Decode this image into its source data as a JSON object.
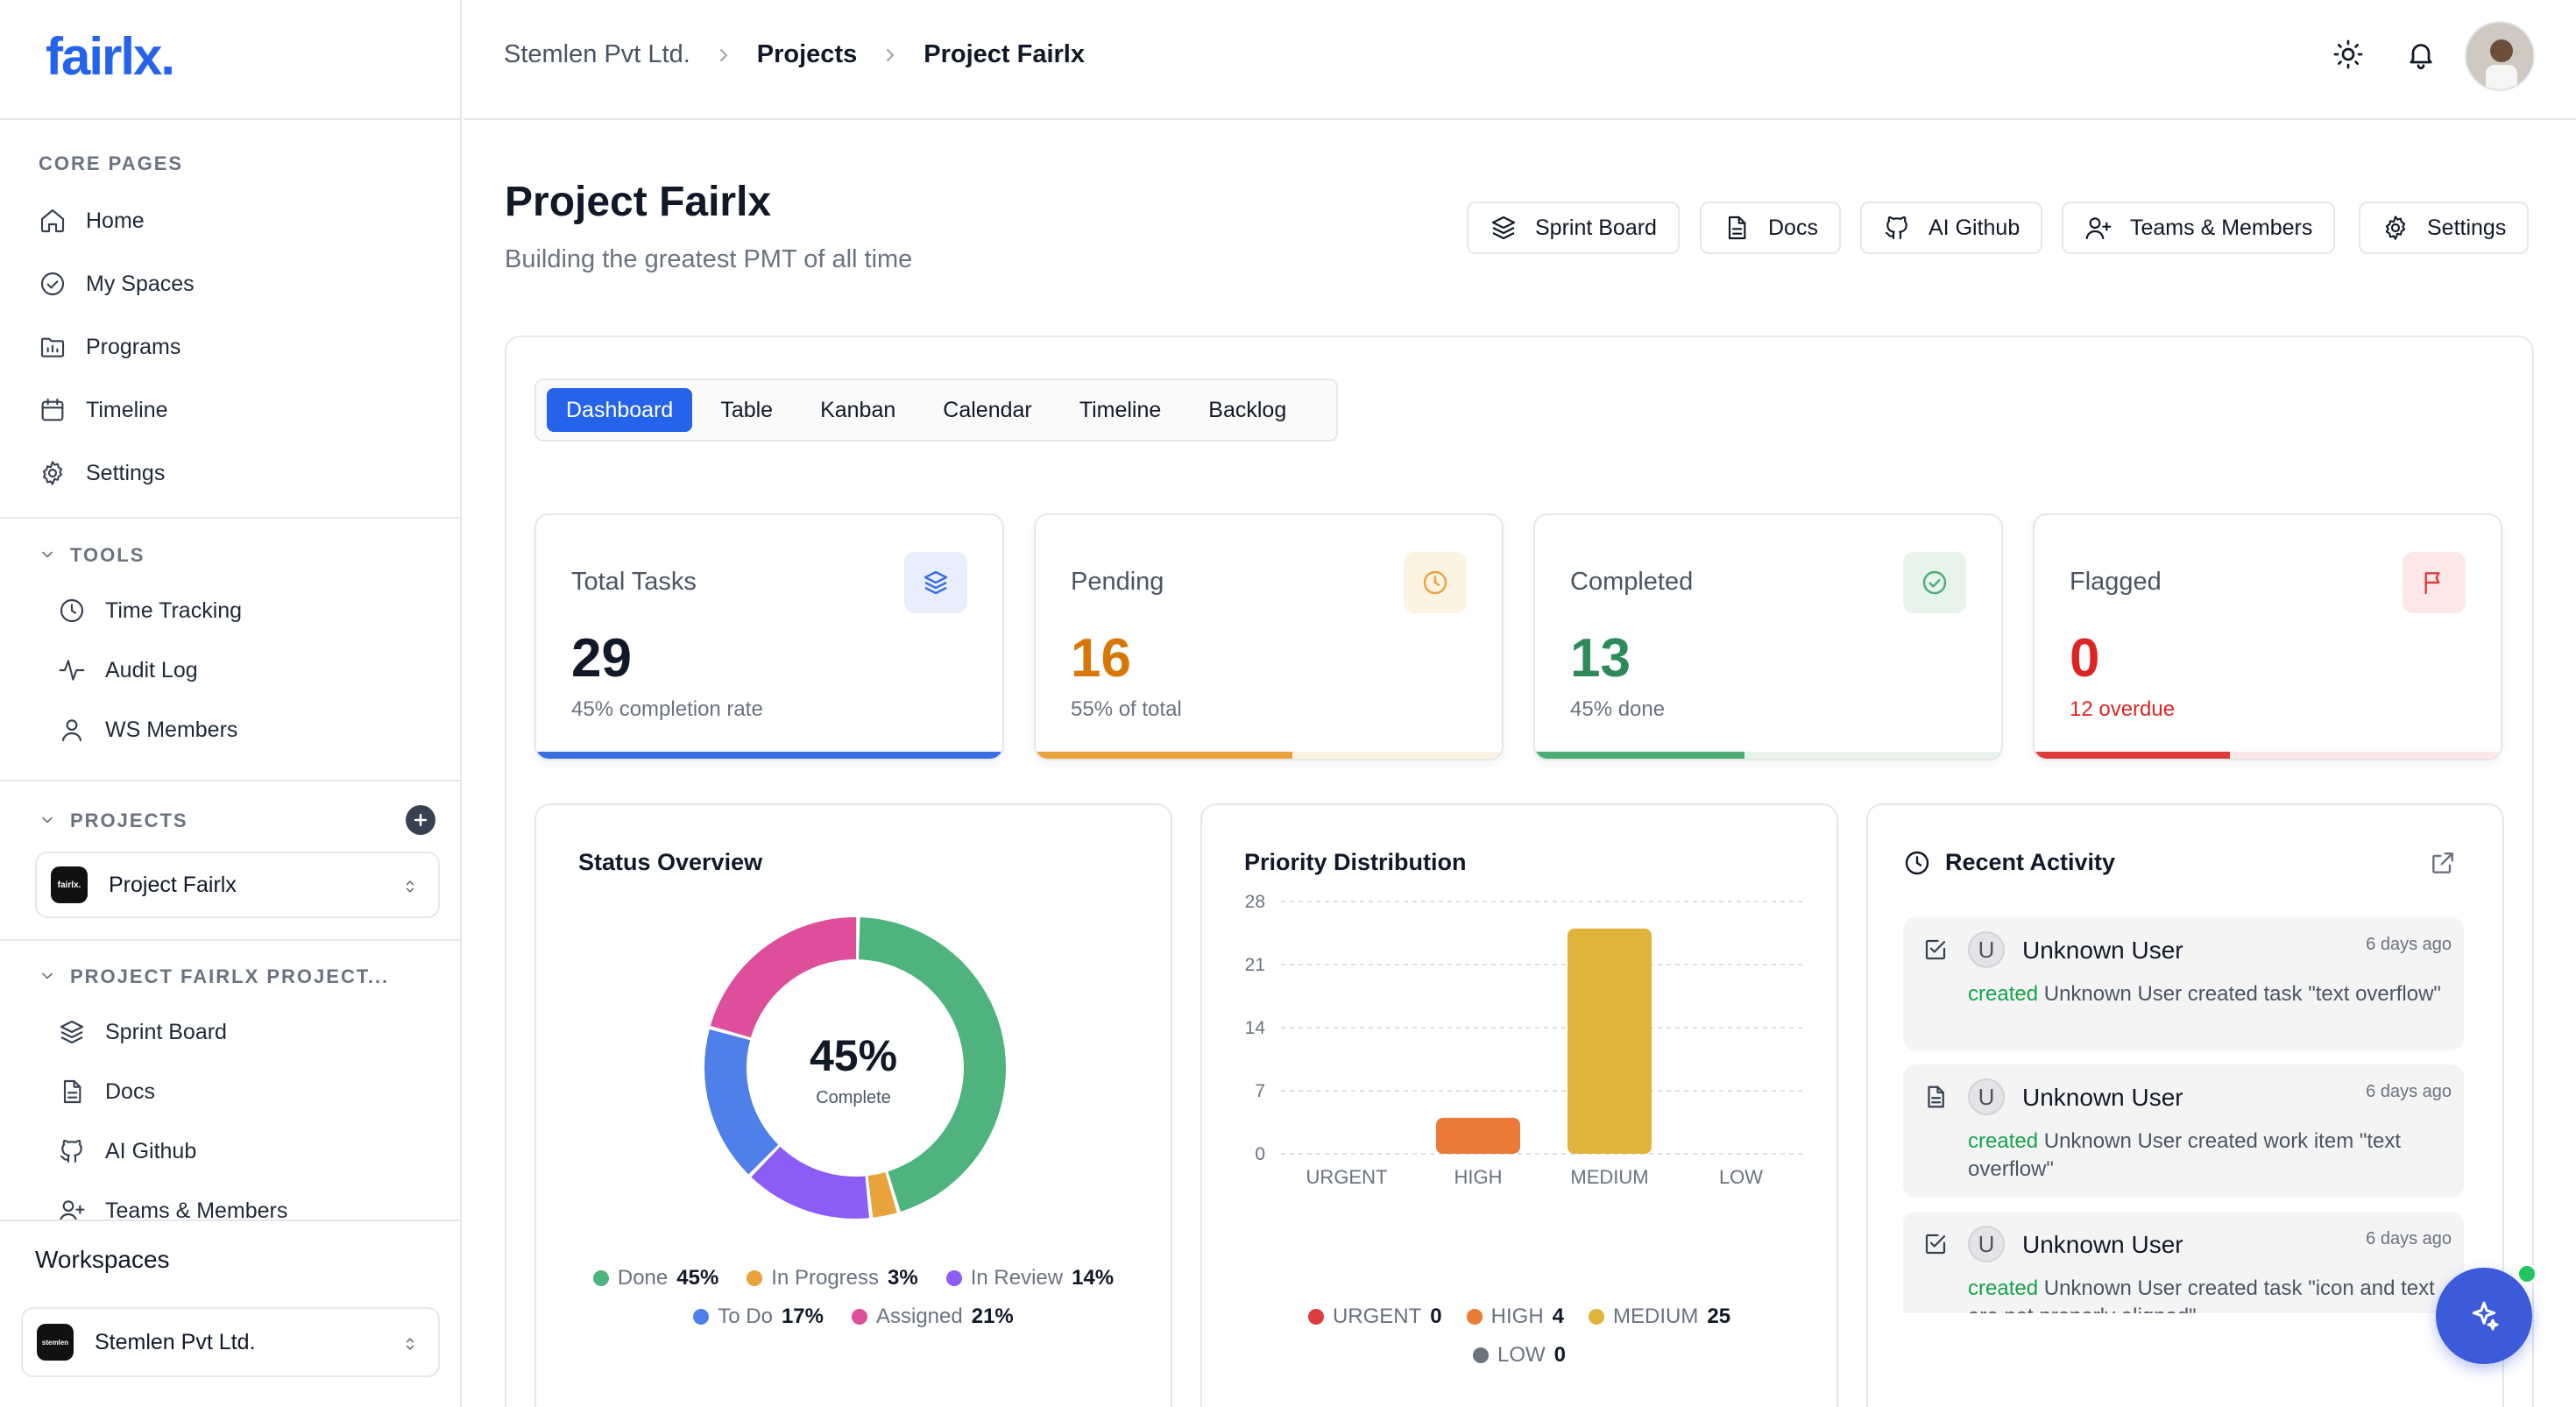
{
  "brand": {
    "logo": "fairlx."
  },
  "sidebar": {
    "core_title": "CORE PAGES",
    "core_items": [
      {
        "label": "Home",
        "icon": "home-icon"
      },
      {
        "label": "My Spaces",
        "icon": "check-circle-icon"
      },
      {
        "label": "Programs",
        "icon": "folder-chart-icon"
      },
      {
        "label": "Timeline",
        "icon": "calendar-icon"
      },
      {
        "label": "Settings",
        "icon": "gear-icon"
      }
    ],
    "tools_title": "TOOLS",
    "tools_items": [
      {
        "label": "Time Tracking",
        "icon": "clock-icon"
      },
      {
        "label": "Audit Log",
        "icon": "activity-icon"
      },
      {
        "label": "WS Members",
        "icon": "user-icon"
      }
    ],
    "projects_title": "PROJECTS",
    "project_select": {
      "name": "Project Fairlx",
      "logo": "fairlx."
    },
    "project_pages_title": "PROJECT FAIRLX PROJECT...",
    "project_items": [
      {
        "label": "Sprint Board",
        "icon": "layers-icon"
      },
      {
        "label": "Docs",
        "icon": "document-icon"
      },
      {
        "label": "AI Github",
        "icon": "github-icon"
      },
      {
        "label": "Teams & Members",
        "icon": "user-plus-icon"
      }
    ],
    "workspace_label": "Workspaces",
    "workspace_select": {
      "name": "Stemlen Pvt Ltd.",
      "logo": "stemlen"
    }
  },
  "header": {
    "breadcrumb": [
      "Stemlen Pvt Ltd.",
      "Projects",
      "Project Fairlx"
    ]
  },
  "page": {
    "title": "Project Fairlx",
    "subtitle": "Building the greatest PMT of all time",
    "actions": [
      "Sprint Board",
      "Docs",
      "AI Github",
      "Teams & Members",
      "Settings"
    ]
  },
  "tabs": [
    "Dashboard",
    "Table",
    "Kanban",
    "Calendar",
    "Timeline",
    "Backlog"
  ],
  "active_tab": "Dashboard",
  "stats": [
    {
      "label": "Total Tasks",
      "value": "29",
      "desc": "45% completion rate",
      "color": "#111827",
      "accent": "#3b6fe0",
      "icon_bg": "#e8eefc",
      "icon": "layers-icon",
      "progress": 1.0
    },
    {
      "label": "Pending",
      "value": "16",
      "desc": "55% of total",
      "color": "#d97706",
      "accent": "#e8a33d",
      "icon_bg": "#fdf3e3",
      "icon": "clock-icon",
      "progress": 0.55
    },
    {
      "label": "Completed",
      "value": "13",
      "desc": "45% done",
      "color": "#2f8a5a",
      "accent": "#4cae74",
      "icon_bg": "#e6f4ec",
      "icon": "check-circle-icon",
      "progress": 0.45
    },
    {
      "label": "Flagged",
      "value": "0",
      "desc": "12 overdue",
      "color": "#dc2626",
      "accent": "#dc3c3c",
      "icon_bg": "#fde8e8",
      "icon": "flag-icon",
      "progress": 0.42
    }
  ],
  "status_overview": {
    "title": "Status Overview",
    "center_value": "45%",
    "center_label": "Complete",
    "chart_data": {
      "type": "pie",
      "categories": [
        "Done",
        "In Progress",
        "In Review",
        "To Do",
        "Assigned"
      ],
      "values": [
        45,
        3,
        14,
        17,
        21
      ],
      "colors": [
        "#4fb37d",
        "#e8a33d",
        "#8b5cf6",
        "#4f7fe8",
        "#dd4f9b"
      ]
    },
    "legend": [
      {
        "label": "Done",
        "pct": "45%"
      },
      {
        "label": "In Progress",
        "pct": "3%"
      },
      {
        "label": "In Review",
        "pct": "14%"
      },
      {
        "label": "To Do",
        "pct": "17%"
      },
      {
        "label": "Assigned",
        "pct": "21%"
      }
    ]
  },
  "priority_distribution": {
    "title": "Priority Distribution",
    "chart_data": {
      "type": "bar",
      "categories": [
        "URGENT",
        "HIGH",
        "MEDIUM",
        "LOW"
      ],
      "values": [
        0,
        4,
        25,
        0
      ],
      "colors": [
        "#dc3c3c",
        "#ea7a35",
        "#e0b43a",
        "#6b7280"
      ],
      "ylim": [
        0,
        28
      ],
      "yticks": [
        0,
        7,
        14,
        21,
        28
      ],
      "grid": true
    },
    "legend": [
      {
        "label": "URGENT",
        "count": "0"
      },
      {
        "label": "HIGH",
        "count": "4"
      },
      {
        "label": "MEDIUM",
        "count": "25"
      },
      {
        "label": "LOW",
        "count": "0"
      }
    ]
  },
  "recent_activity": {
    "title": "Recent Activity",
    "items": [
      {
        "type_icon": "checkbox-icon",
        "avatar": "U",
        "user": "Unknown User",
        "time": "6 days ago",
        "verb": "created",
        "text": " Unknown User created task \"text overflow\""
      },
      {
        "type_icon": "document-icon",
        "avatar": "U",
        "user": "Unknown User",
        "time": "6 days ago",
        "verb": "created",
        "text": " Unknown User created work item \"text overflow\""
      },
      {
        "type_icon": "checkbox-icon",
        "avatar": "U",
        "user": "Unknown User",
        "time": "6 days ago",
        "verb": "created",
        "text": " Unknown User created task \"icon and text are not properly aligned\""
      }
    ]
  }
}
